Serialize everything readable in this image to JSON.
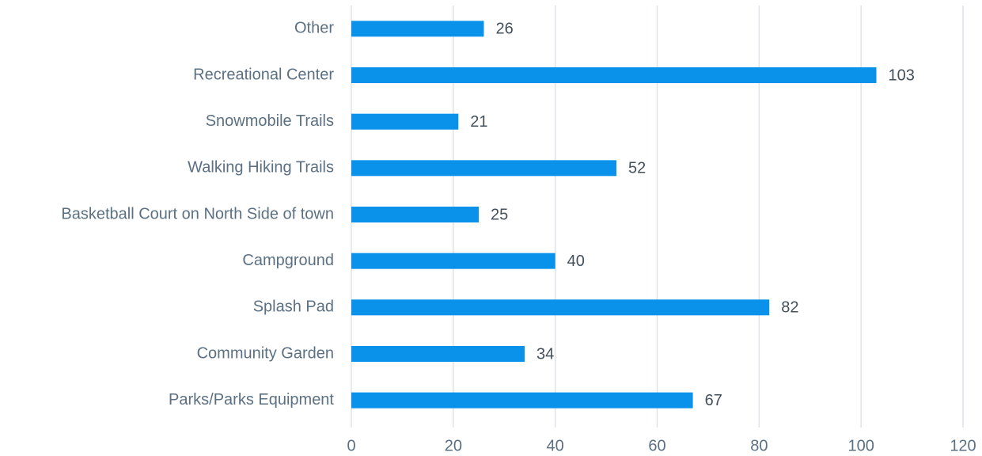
{
  "chart_data": {
    "type": "barh",
    "categories": [
      "Other",
      "Recreational Center",
      "Snowmobile Trails",
      "Walking Hiking Trails",
      "Basketball Court on North Side of town",
      "Campground",
      "Splash Pad",
      "Community Garden",
      "Parks/Parks Equipment"
    ],
    "values": [
      26,
      103,
      21,
      52,
      25,
      40,
      82,
      34,
      67
    ],
    "color": "#0a91ea",
    "xlim": [
      0,
      120
    ],
    "xticks": [
      0,
      20,
      40,
      60,
      80,
      100,
      120
    ],
    "grid": true
  }
}
